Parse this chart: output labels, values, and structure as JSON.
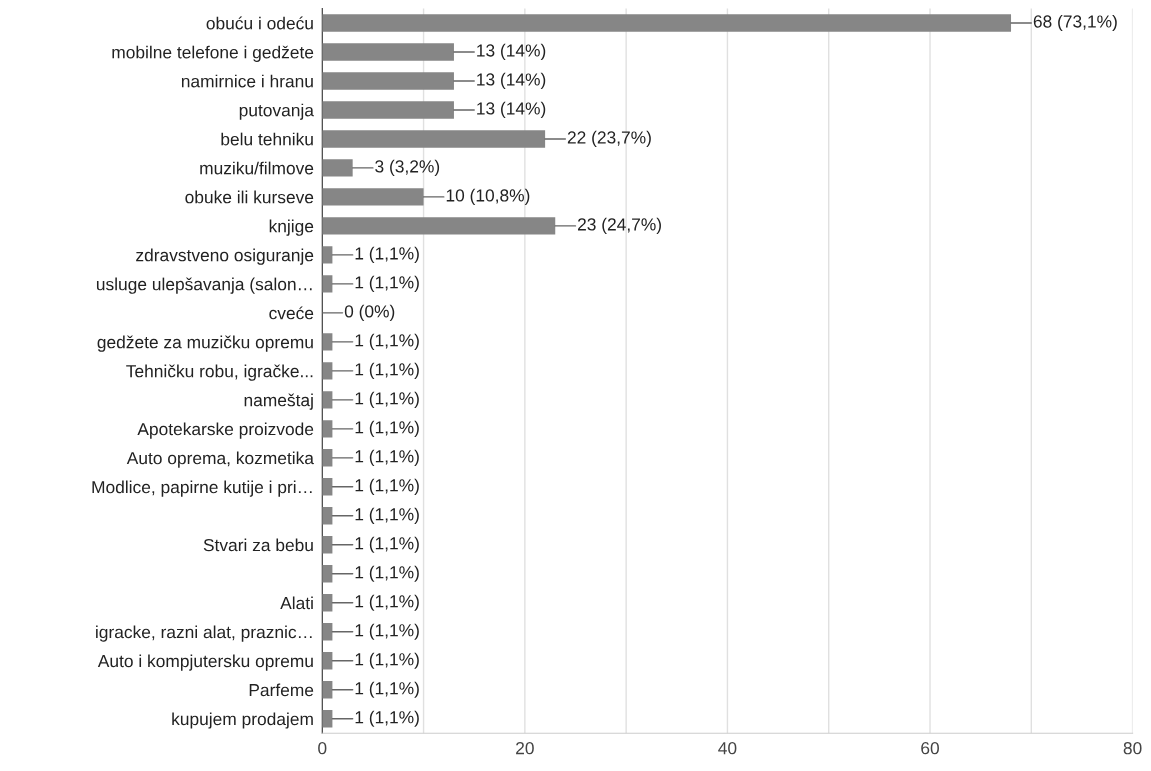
{
  "chart_data": {
    "type": "bar",
    "orientation": "horizontal",
    "categories": [
      "obuću i odeću",
      "mobilne telefone i gedžete",
      "namirnice i hranu",
      "putovanja",
      "belu tehniku",
      "muziku/filmove",
      "obuke ili kurseve",
      "knjige",
      "zdravstveno osiguranje",
      "usluge ulepšavanja (salon…",
      "cveće",
      "gedžete za muzičku opremu",
      "Tehničku robu, igračke...",
      "nameštaj",
      "Apotekarske proizvode",
      "Auto oprema, kozmetika",
      "Modlice, papirne kutije i pri…",
      null,
      "Stvari za bebu",
      null,
      "Alati",
      "igracke, razni alat, praznic…",
      "Auto i kompjutersku opremu",
      "Parfeme",
      "kupujem prodajem"
    ],
    "values": [
      68,
      13,
      13,
      13,
      22,
      3,
      10,
      23,
      1,
      1,
      0,
      1,
      1,
      1,
      1,
      1,
      1,
      1,
      1,
      1,
      1,
      1,
      1,
      1,
      1
    ],
    "value_labels": [
      "68 (73,1%)",
      "13 (14%)",
      "13 (14%)",
      "13 (14%)",
      "22 (23,7%)",
      "3 (3,2%)",
      "10 (10,8%)",
      "23 (24,7%)",
      "1 (1,1%)",
      "1 (1,1%)",
      "0 (0%)",
      "1 (1,1%)",
      "1 (1,1%)",
      "1 (1,1%)",
      "1 (1,1%)",
      "1 (1,1%)",
      "1 (1,1%)",
      "1 (1,1%)",
      "1 (1,1%)",
      "1 (1,1%)",
      "1 (1,1%)",
      "1 (1,1%)",
      "1 (1,1%)",
      "1 (1,1%)",
      "1 (1,1%)"
    ],
    "color": "#868686",
    "xlim": [
      0,
      80
    ],
    "xticks": [
      0,
      {
        "value": 10,
        "label": null
      },
      20,
      {
        "value": 30,
        "label": null
      },
      40,
      {
        "value": 50,
        "label": null
      },
      60,
      {
        "value": 70,
        "label": null
      },
      80
    ],
    "grid": "x"
  }
}
